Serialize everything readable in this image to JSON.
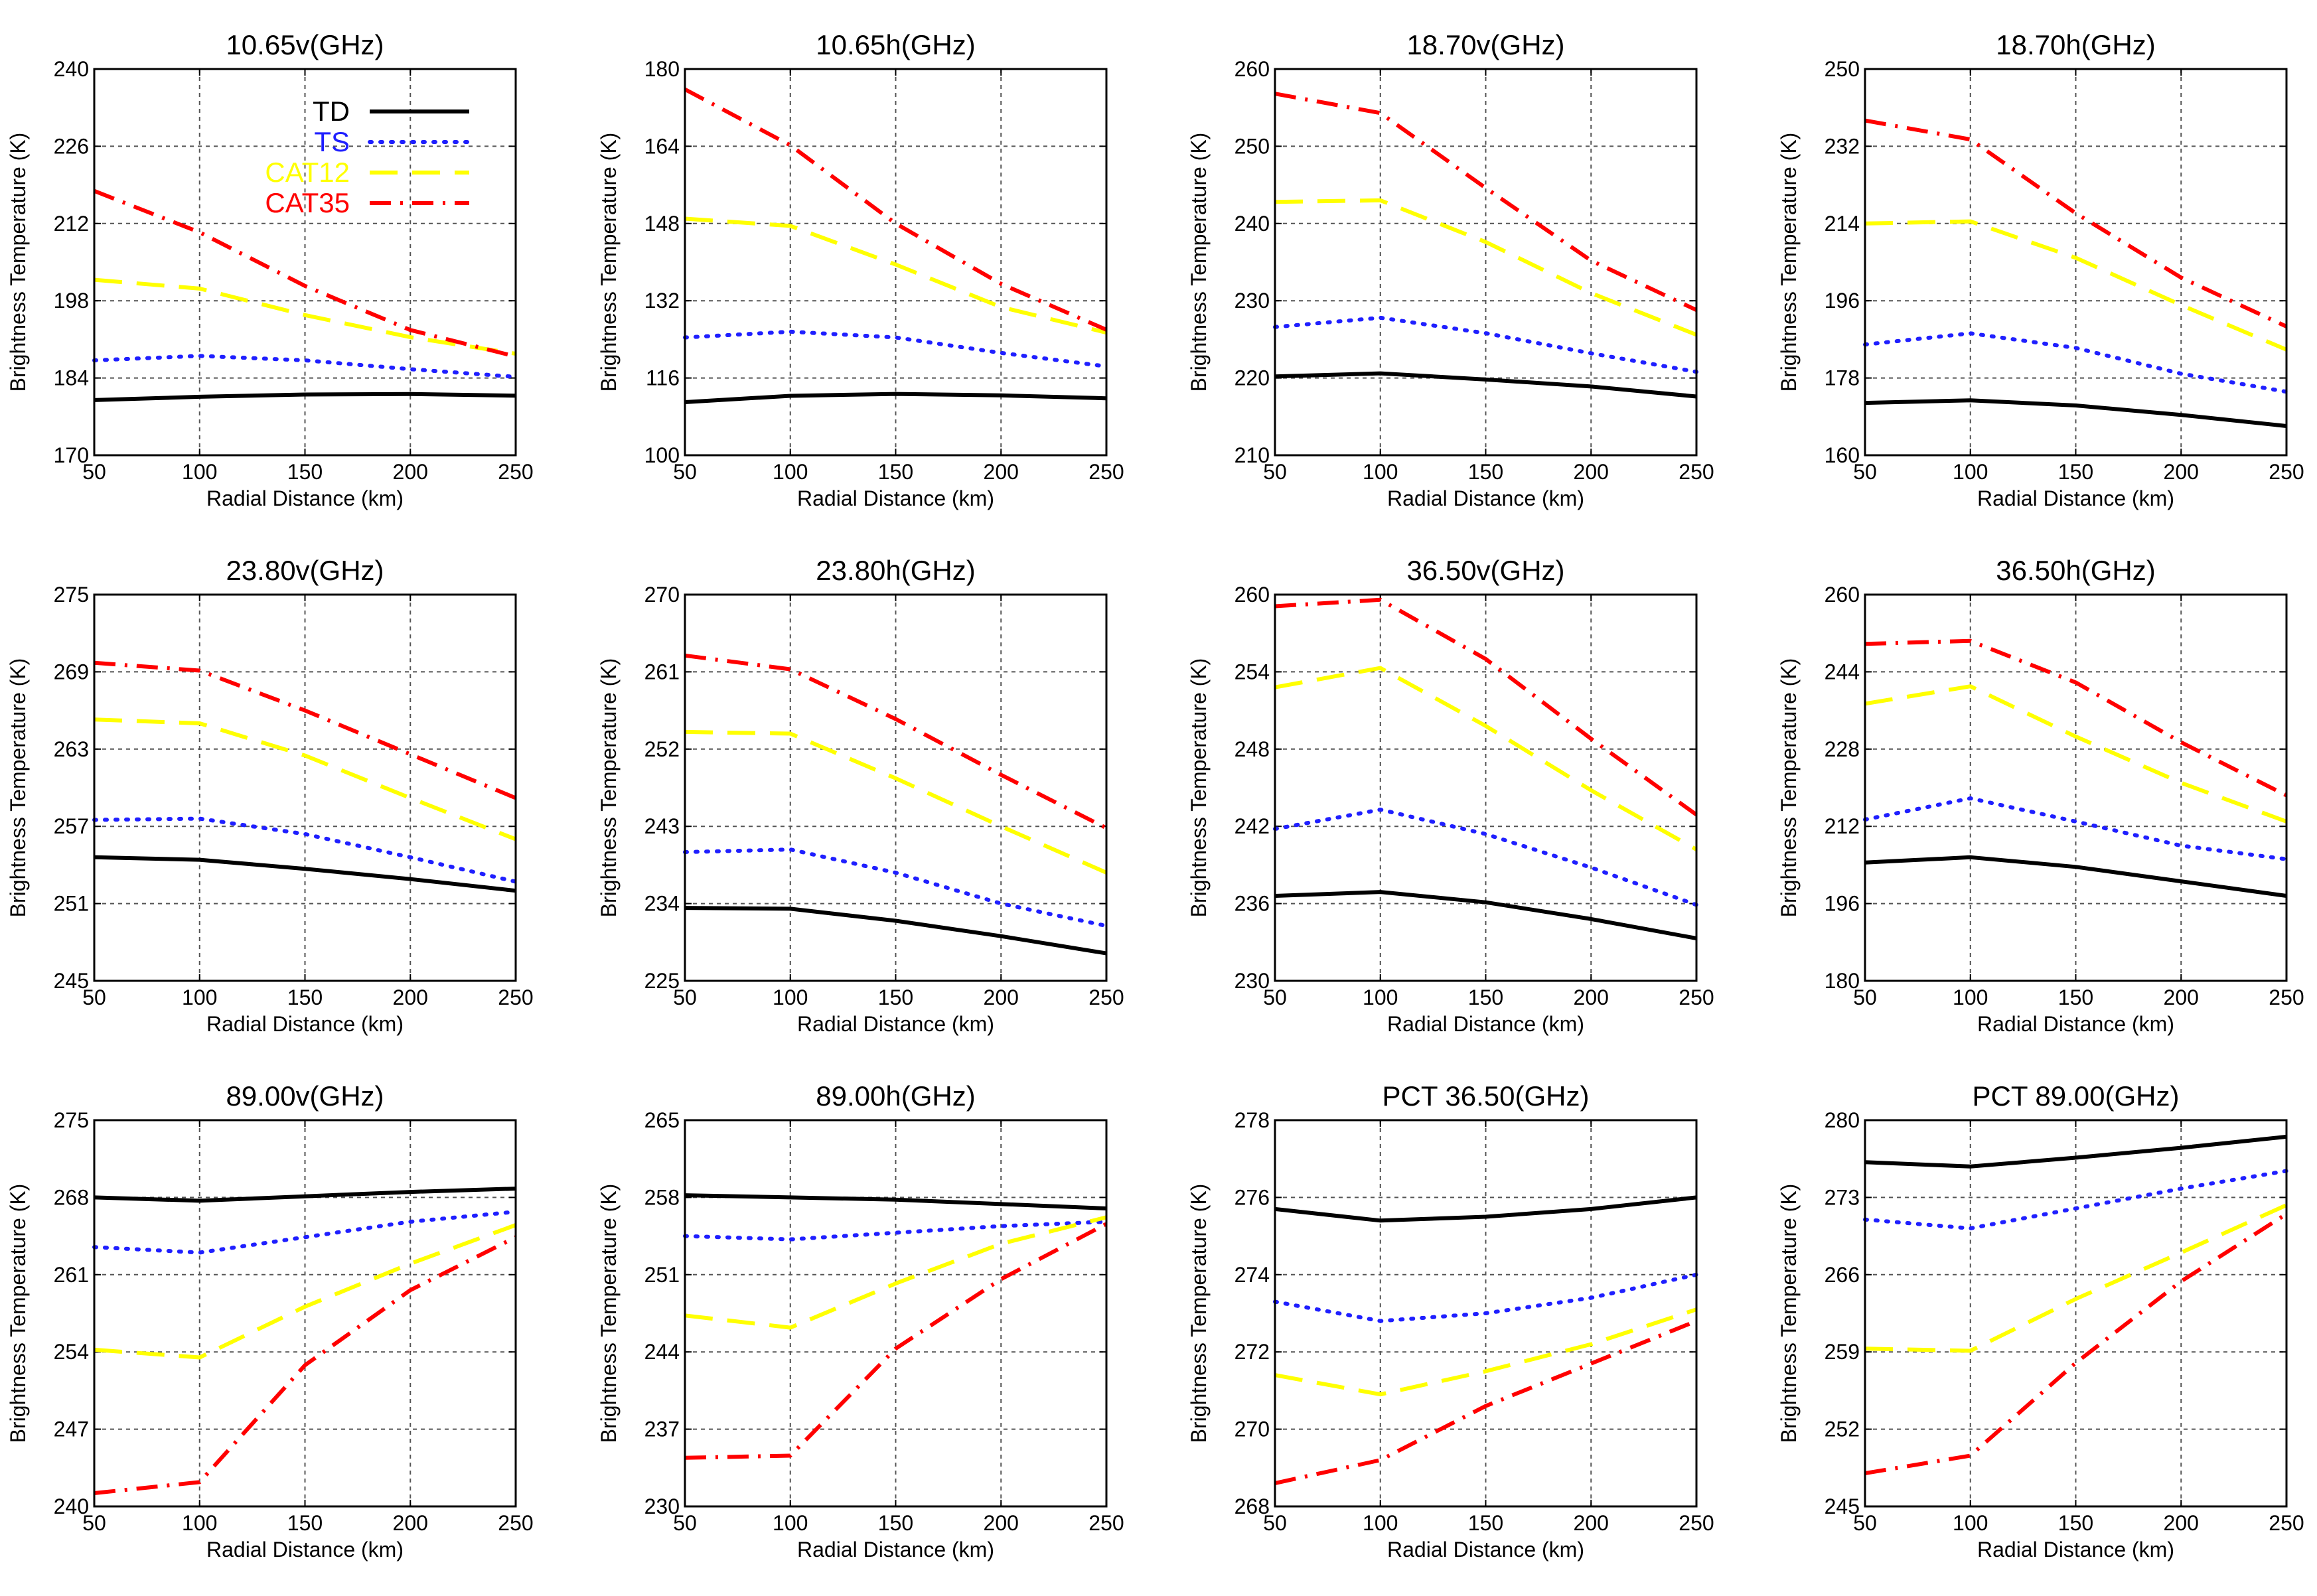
{
  "chart_data": [
    {
      "type": "line",
      "title": "10.65v(GHz)",
      "xlabel": "Radial Distance (km)",
      "ylabel": "Brightness Temperature (K)",
      "x": [
        50,
        100,
        150,
        200,
        250
      ],
      "xticks": [
        50,
        100,
        150,
        200,
        250
      ],
      "ylim": [
        170,
        240
      ],
      "yticks": [
        170,
        184,
        198,
        212,
        226,
        240
      ],
      "grid": true,
      "legend": "top-right",
      "series": [
        {
          "name": "TD",
          "values": [
            180.0,
            180.6,
            181.0,
            181.1,
            180.8
          ]
        },
        {
          "name": "TS",
          "values": [
            187.2,
            188.0,
            187.2,
            185.6,
            184.2
          ]
        },
        {
          "name": "CAT12",
          "values": [
            201.8,
            200.2,
            195.4,
            191.4,
            188.4
          ]
        },
        {
          "name": "CAT35",
          "values": [
            217.9,
            210.4,
            200.7,
            192.7,
            187.9
          ]
        }
      ]
    },
    {
      "type": "line",
      "title": "10.65h(GHz)",
      "xlabel": "Radial Distance (km)",
      "ylabel": "Brightness Temperature (K)",
      "x": [
        50,
        100,
        150,
        200,
        250
      ],
      "xticks": [
        50,
        100,
        150,
        200,
        250
      ],
      "ylim": [
        100,
        180
      ],
      "yticks": [
        100,
        116,
        132,
        148,
        164,
        180
      ],
      "grid": true,
      "series": [
        {
          "name": "TD",
          "values": [
            111.0,
            112.3,
            112.7,
            112.4,
            111.8
          ]
        },
        {
          "name": "TS",
          "values": [
            124.4,
            125.6,
            124.4,
            121.2,
            118.4
          ]
        },
        {
          "name": "CAT12",
          "values": [
            149.0,
            147.5,
            139.5,
            130.7,
            125.4
          ]
        },
        {
          "name": "CAT35",
          "values": [
            175.8,
            164.2,
            148.0,
            135.5,
            126.0
          ]
        }
      ]
    },
    {
      "type": "line",
      "title": "18.70v(GHz)",
      "xlabel": "Radial Distance (km)",
      "ylabel": "Brightness Temperature (K)",
      "x": [
        50,
        100,
        150,
        200,
        250
      ],
      "xticks": [
        50,
        100,
        150,
        200,
        250
      ],
      "ylim": [
        210,
        260
      ],
      "yticks": [
        210,
        220,
        230,
        240,
        250,
        260
      ],
      "grid": true,
      "series": [
        {
          "name": "TD",
          "values": [
            220.2,
            220.6,
            219.8,
            218.9,
            217.6
          ]
        },
        {
          "name": "TS",
          "values": [
            226.6,
            227.8,
            225.8,
            223.2,
            220.8
          ]
        },
        {
          "name": "CAT12",
          "values": [
            242.8,
            243.0,
            237.6,
            231.0,
            225.6
          ]
        },
        {
          "name": "CAT35",
          "values": [
            256.8,
            254.3,
            244.6,
            235.2,
            228.8
          ]
        }
      ]
    },
    {
      "type": "line",
      "title": "18.70h(GHz)",
      "xlabel": "Radial Distance (km)",
      "ylabel": "Brightness Temperature (K)",
      "x": [
        50,
        100,
        150,
        200,
        250
      ],
      "xticks": [
        50,
        100,
        150,
        200,
        250
      ],
      "ylim": [
        160,
        250
      ],
      "yticks": [
        160,
        178,
        196,
        214,
        232,
        250
      ],
      "grid": true,
      "series": [
        {
          "name": "TD",
          "values": [
            172.2,
            172.8,
            171.6,
            169.4,
            166.8
          ]
        },
        {
          "name": "TS",
          "values": [
            185.8,
            188.4,
            185.0,
            179.0,
            174.8
          ]
        },
        {
          "name": "CAT12",
          "values": [
            214.0,
            214.5,
            206.0,
            195.0,
            184.6
          ]
        },
        {
          "name": "CAT35",
          "values": [
            238.0,
            233.6,
            216.4,
            201.4,
            190.0
          ]
        }
      ]
    },
    {
      "type": "line",
      "title": "23.80v(GHz)",
      "xlabel": "Radial Distance (km)",
      "ylabel": "Brightness Temperature (K)",
      "x": [
        50,
        100,
        150,
        200,
        250
      ],
      "xticks": [
        50,
        100,
        150,
        200,
        250
      ],
      "ylim": [
        245,
        275
      ],
      "yticks": [
        245,
        251,
        257,
        263,
        269,
        275
      ],
      "grid": true,
      "series": [
        {
          "name": "TD",
          "values": [
            254.6,
            254.4,
            253.7,
            252.9,
            252.0
          ]
        },
        {
          "name": "TS",
          "values": [
            257.5,
            257.6,
            256.4,
            254.6,
            252.7
          ]
        },
        {
          "name": "CAT12",
          "values": [
            265.3,
            265.0,
            262.5,
            259.2,
            256.0
          ]
        },
        {
          "name": "CAT35",
          "values": [
            269.7,
            269.1,
            266.0,
            262.6,
            259.2
          ]
        }
      ]
    },
    {
      "type": "line",
      "title": "23.80h(GHz)",
      "xlabel": "Radial Distance (km)",
      "ylabel": "Brightness Temperature (K)",
      "x": [
        50,
        100,
        150,
        200,
        250
      ],
      "xticks": [
        50,
        100,
        150,
        200,
        250
      ],
      "ylim": [
        225,
        270
      ],
      "yticks": [
        225,
        234,
        243,
        252,
        261,
        270
      ],
      "grid": true,
      "series": [
        {
          "name": "TD",
          "values": [
            233.5,
            233.4,
            232.0,
            230.2,
            228.2
          ]
        },
        {
          "name": "TS",
          "values": [
            240.0,
            240.3,
            237.6,
            234.0,
            231.4
          ]
        },
        {
          "name": "CAT12",
          "values": [
            254.0,
            253.8,
            248.6,
            243.0,
            237.6
          ]
        },
        {
          "name": "CAT35",
          "values": [
            262.9,
            261.3,
            255.5,
            249.0,
            242.8
          ]
        }
      ]
    },
    {
      "type": "line",
      "title": "36.50v(GHz)",
      "xlabel": "Radial Distance (km)",
      "ylabel": "Brightness Temperature (K)",
      "x": [
        50,
        100,
        150,
        200,
        250
      ],
      "xticks": [
        50,
        100,
        150,
        200,
        250
      ],
      "ylim": [
        230,
        260
      ],
      "yticks": [
        230,
        236,
        242,
        248,
        254,
        260
      ],
      "grid": true,
      "series": [
        {
          "name": "TD",
          "values": [
            236.6,
            236.9,
            236.1,
            234.8,
            233.3
          ]
        },
        {
          "name": "TS",
          "values": [
            241.8,
            243.3,
            241.4,
            238.8,
            235.9
          ]
        },
        {
          "name": "CAT12",
          "values": [
            252.8,
            254.3,
            249.8,
            244.8,
            240.2
          ]
        },
        {
          "name": "CAT35",
          "values": [
            259.1,
            259.6,
            255.0,
            248.8,
            242.9
          ]
        }
      ]
    },
    {
      "type": "line",
      "title": "36.50h(GHz)",
      "xlabel": "Radial Distance (km)",
      "ylabel": "Brightness Temperature (K)",
      "x": [
        50,
        100,
        150,
        200,
        250
      ],
      "xticks": [
        50,
        100,
        150,
        200,
        250
      ],
      "ylim": [
        180,
        260
      ],
      "yticks": [
        180,
        196,
        212,
        228,
        244,
        260
      ],
      "grid": true,
      "series": [
        {
          "name": "TD",
          "values": [
            204.5,
            205.6,
            203.6,
            200.6,
            197.6
          ]
        },
        {
          "name": "TS",
          "values": [
            213.4,
            217.8,
            213.0,
            208.0,
            205.2
          ]
        },
        {
          "name": "CAT12",
          "values": [
            237.4,
            241.0,
            230.6,
            221.0,
            213.0
          ]
        },
        {
          "name": "CAT35",
          "values": [
            249.8,
            250.4,
            241.8,
            229.4,
            218.4
          ]
        }
      ]
    },
    {
      "type": "line",
      "title": "89.00v(GHz)",
      "xlabel": "Radial Distance (km)",
      "ylabel": "Brightness Temperature (K)",
      "x": [
        50,
        100,
        150,
        200,
        250
      ],
      "xticks": [
        50,
        100,
        150,
        200,
        250
      ],
      "ylim": [
        240,
        275
      ],
      "yticks": [
        240,
        247,
        254,
        261,
        268,
        275
      ],
      "grid": true,
      "series": [
        {
          "name": "TD",
          "values": [
            268.0,
            267.7,
            268.1,
            268.5,
            268.8
          ]
        },
        {
          "name": "TS",
          "values": [
            263.5,
            263.0,
            264.4,
            265.8,
            266.7
          ]
        },
        {
          "name": "CAT12",
          "values": [
            254.2,
            253.5,
            258.1,
            262.0,
            265.5
          ]
        },
        {
          "name": "CAT35",
          "values": [
            241.2,
            242.2,
            252.8,
            259.6,
            264.4
          ]
        }
      ]
    },
    {
      "type": "line",
      "title": "89.00h(GHz)",
      "xlabel": "Radial Distance (km)",
      "ylabel": "Brightness Temperature (K)",
      "x": [
        50,
        100,
        150,
        200,
        250
      ],
      "xticks": [
        50,
        100,
        150,
        200,
        250
      ],
      "ylim": [
        230,
        265
      ],
      "yticks": [
        230,
        237,
        244,
        251,
        258,
        265
      ],
      "grid": true,
      "series": [
        {
          "name": "TD",
          "values": [
            258.2,
            258.0,
            257.8,
            257.4,
            257.0
          ]
        },
        {
          "name": "TS",
          "values": [
            254.5,
            254.2,
            254.8,
            255.4,
            255.8
          ]
        },
        {
          "name": "CAT12",
          "values": [
            247.3,
            246.2,
            250.2,
            253.8,
            256.2
          ]
        },
        {
          "name": "CAT35",
          "values": [
            234.4,
            234.6,
            244.3,
            250.6,
            255.6
          ]
        }
      ]
    },
    {
      "type": "line",
      "title": "PCT 36.50(GHz)",
      "xlabel": "Radial Distance (km)",
      "ylabel": "Brightness Temperature (K)",
      "x": [
        50,
        100,
        150,
        200,
        250
      ],
      "xticks": [
        50,
        100,
        150,
        200,
        250
      ],
      "ylim": [
        268,
        278
      ],
      "yticks": [
        268,
        270,
        272,
        274,
        276,
        278
      ],
      "grid": true,
      "series": [
        {
          "name": "TD",
          "values": [
            275.7,
            275.4,
            275.5,
            275.7,
            276.0
          ]
        },
        {
          "name": "TS",
          "values": [
            273.3,
            272.8,
            273.0,
            273.4,
            274.0
          ]
        },
        {
          "name": "CAT12",
          "values": [
            271.4,
            270.9,
            271.5,
            272.2,
            273.1
          ]
        },
        {
          "name": "CAT35",
          "values": [
            268.6,
            269.2,
            270.6,
            271.7,
            272.8
          ]
        }
      ]
    },
    {
      "type": "line",
      "title": "PCT 89.00(GHz)",
      "xlabel": "Radial Distance (km)",
      "ylabel": "Brightness Temperature (K)",
      "x": [
        50,
        100,
        150,
        200,
        250
      ],
      "xticks": [
        50,
        100,
        150,
        200,
        250
      ],
      "ylim": [
        245,
        280
      ],
      "yticks": [
        245,
        252,
        259,
        266,
        273,
        280
      ],
      "grid": true,
      "series": [
        {
          "name": "TD",
          "values": [
            276.2,
            275.8,
            276.6,
            277.5,
            278.5
          ]
        },
        {
          "name": "TS",
          "values": [
            271.0,
            270.2,
            272.0,
            273.8,
            275.4
          ]
        },
        {
          "name": "CAT12",
          "values": [
            259.3,
            259.1,
            263.8,
            268.0,
            272.3
          ]
        },
        {
          "name": "CAT35",
          "values": [
            248.0,
            249.6,
            258.0,
            265.4,
            271.5
          ]
        }
      ]
    }
  ],
  "legend_entries": [
    "TD",
    "TS",
    "CAT12",
    "CAT35"
  ],
  "colors": {
    "TD": "#000000",
    "TS": "#1f1fff",
    "CAT12": "#ffff00",
    "CAT35": "#ff0000",
    "grid": "#555555"
  },
  "styles": {
    "TD": "solid",
    "TS": "dotted",
    "CAT12": "dashed",
    "CAT35": "dashdot"
  }
}
